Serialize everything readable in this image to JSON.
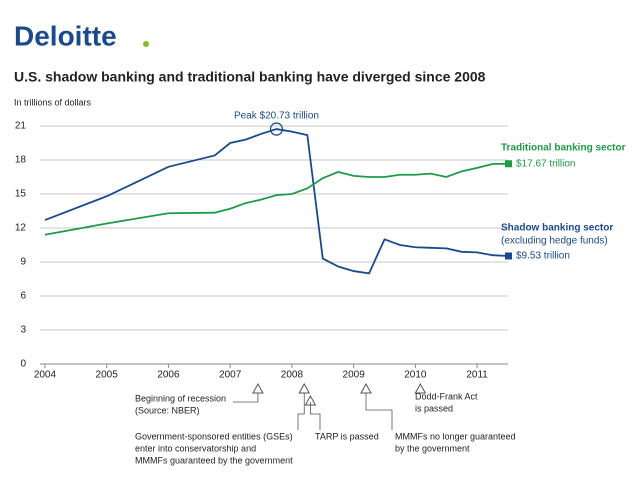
{
  "logo": "Deloitte",
  "chart_data": {
    "type": "line",
    "title": "U.S. shadow banking and traditional banking have diverged since 2008",
    "subtitle": "In trillions of dollars",
    "x": [
      2004,
      2005,
      2006,
      2006.75,
      2007,
      2007.25,
      2007.5,
      2007.75,
      2008,
      2008.25,
      2008.5,
      2008.75,
      2009,
      2009.25,
      2009.5,
      2009.75,
      2010,
      2010.25,
      2010.5,
      2010.75,
      2011,
      2011.25,
      2011.5
    ],
    "xlim": [
      2003.92,
      2011.5
    ],
    "xticks": [
      2004,
      2005,
      2006,
      2007,
      2008,
      2009,
      2010,
      2011
    ],
    "ylim": [
      0,
      21
    ],
    "yticks": [
      0,
      3,
      6,
      9,
      12,
      15,
      18,
      21
    ],
    "grid": true,
    "series": [
      {
        "name": "Shadow banking sector",
        "note": "(excluding hedge funds)",
        "color": "#1b4a8c",
        "values": [
          12.7,
          14.8,
          17.4,
          18.4,
          19.5,
          19.8,
          20.3,
          20.73,
          20.5,
          20.2,
          9.3,
          8.6,
          8.2,
          8.0,
          11.0,
          10.5,
          10.3,
          10.25,
          10.2,
          9.9,
          9.85,
          9.6,
          9.53
        ],
        "value_labels": [
          null,
          null,
          null,
          null,
          null,
          null,
          null,
          "Peak $20.73 trillion",
          null,
          null,
          null,
          null,
          null,
          null,
          null,
          null,
          null,
          null,
          null,
          null,
          null,
          null,
          "$9.53 trillion"
        ]
      },
      {
        "name": "Traditional banking sector",
        "color": "#1f9a48",
        "values": [
          11.4,
          12.4,
          13.3,
          13.35,
          13.7,
          14.2,
          14.5,
          14.9,
          15.0,
          15.5,
          16.4,
          16.95,
          16.6,
          16.5,
          16.5,
          16.7,
          16.7,
          16.8,
          16.5,
          17.0,
          17.3,
          17.65,
          17.67
        ],
        "value_labels": [
          null,
          null,
          null,
          null,
          null,
          null,
          null,
          null,
          null,
          null,
          null,
          null,
          null,
          null,
          null,
          null,
          null,
          null,
          null,
          null,
          null,
          null,
          "$17.67 trillion"
        ]
      }
    ],
    "events": [
      {
        "x": 2007.45,
        "lines": [
          "Beginning of recession",
          "(Source: NBER)"
        ]
      },
      {
        "x": 2008.2,
        "lines": [
          "Government-sponsored entities (GSEs)",
          "enter into conservatorship and",
          "MMMFs guaranteed by the government"
        ]
      },
      {
        "x": 2008.3,
        "lines": [
          "TARP is passed"
        ]
      },
      {
        "x": 2009.2,
        "lines": [
          "MMMFs no longer guaranteed",
          "by the government"
        ]
      },
      {
        "x": 2010.08,
        "lines": [
          "Dodd-Frank Act",
          "is passed"
        ]
      }
    ]
  }
}
